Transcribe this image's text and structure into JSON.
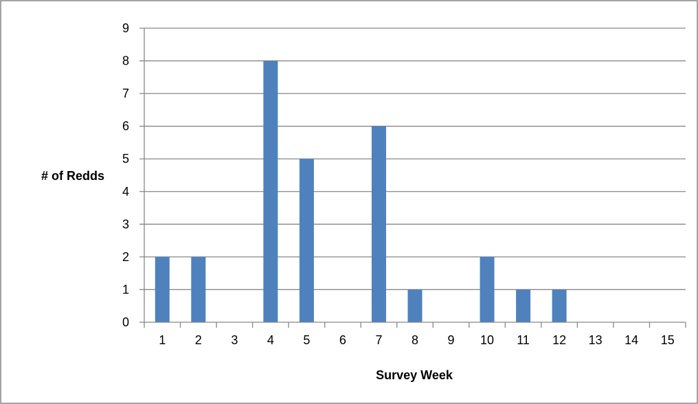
{
  "chart_data": {
    "type": "bar",
    "title": "",
    "xlabel": "Survey Week",
    "ylabel": "# of Redds",
    "categories": [
      "1",
      "2",
      "3",
      "4",
      "5",
      "6",
      "7",
      "8",
      "9",
      "10",
      "11",
      "12",
      "13",
      "14",
      "15"
    ],
    "values": [
      2,
      2,
      0,
      8,
      5,
      0,
      6,
      1,
      0,
      2,
      1,
      1,
      0,
      0,
      0
    ],
    "ylim": [
      0,
      9
    ],
    "yticks": [
      "0",
      "1",
      "2",
      "3",
      "4",
      "5",
      "6",
      "7",
      "8",
      "9"
    ],
    "grid": "horizontal",
    "legend": "none",
    "colors": {
      "bar": "#4f81bd",
      "grid": "#868686",
      "border": "#868686"
    }
  }
}
